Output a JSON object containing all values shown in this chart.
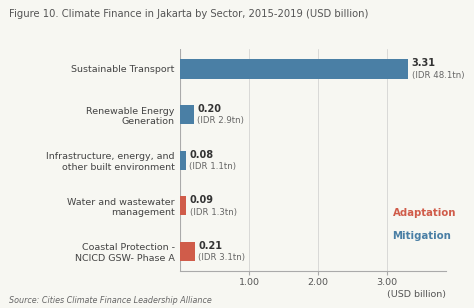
{
  "title": "Figure 10. Climate Finance in Jakarta by Sector, 2015-2019 (USD billion)",
  "categories": [
    "Coastal Protection -\nNCICD GSW- Phase A",
    "Water and wastewater\nmanagement",
    "Infrastructure, energy, and\nother built environment",
    "Renewable Energy\nGeneration",
    "Sustainable Transport"
  ],
  "values": [
    0.21,
    0.09,
    0.08,
    0.2,
    3.31
  ],
  "bar_colors": [
    "#d05c4a",
    "#d05c4a",
    "#4a7fa5",
    "#4a7fa5",
    "#4a7fa5"
  ],
  "value_labels": [
    "0.21",
    "0.09",
    "0.08",
    "0.20",
    "3.31"
  ],
  "idr_labels": [
    "(IDR 3.1tn)",
    "(IDR 1.3tn)",
    "(IDR 1.1tn)",
    "(IDR 2.9tn)",
    "(IDR 48.1tn)"
  ],
  "xticks": [
    1.0,
    2.0,
    3.0
  ],
  "xtick_labels": [
    "1.00",
    "2.00",
    "3.00"
  ],
  "xlabel": "(USD billion)",
  "xlim": [
    0,
    3.85
  ],
  "source": "Source: Cities Climate Finance Leadership Alliance",
  "legend_adaptation": "Adaptation",
  "legend_mitigation": "Mitigation",
  "legend_adaptation_color": "#d05c4a",
  "legend_mitigation_color": "#4a7fa5",
  "background_color": "#f7f7f2",
  "title_fontsize": 7.2,
  "label_fontsize": 6.8,
  "value_fontsize": 7.0,
  "idr_fontsize": 6.2,
  "source_fontsize": 5.8
}
